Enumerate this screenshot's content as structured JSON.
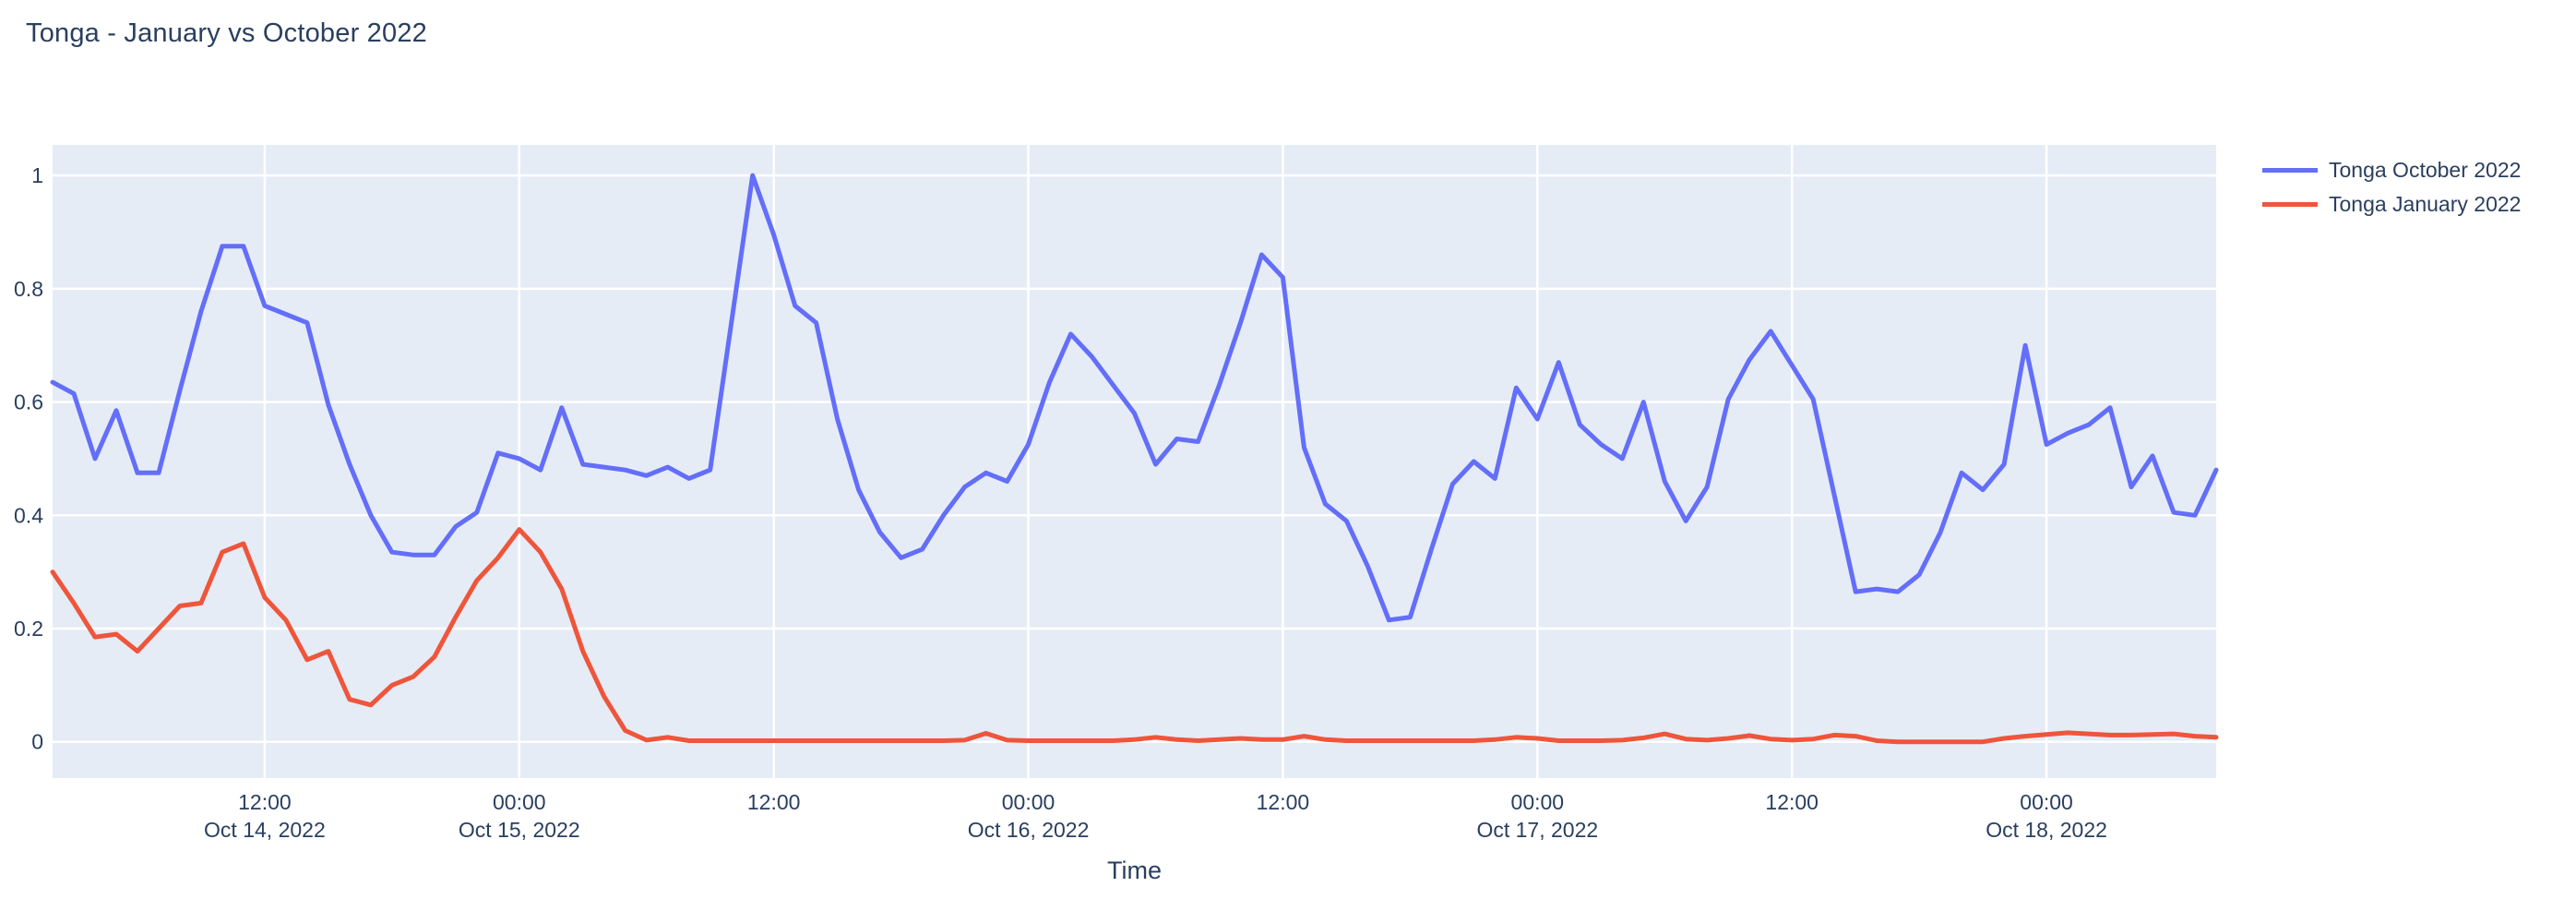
{
  "title": "Tonga - January vs October 2022",
  "legend": {
    "items": [
      {
        "label": "Tonga October 2022",
        "color": "#636EFA"
      },
      {
        "label": "Tonga January 2022",
        "color": "#EF553B"
      }
    ]
  },
  "axes": {
    "x_title": "Time",
    "x_ticks": [
      {
        "hour": 10,
        "time": "12:00",
        "date": "Oct 14, 2022"
      },
      {
        "hour": 22,
        "time": "00:00",
        "date": "Oct 15, 2022"
      },
      {
        "hour": 34,
        "time": "12:00",
        "date": ""
      },
      {
        "hour": 46,
        "time": "00:00",
        "date": "Oct 16, 2022"
      },
      {
        "hour": 58,
        "time": "12:00",
        "date": ""
      },
      {
        "hour": 70,
        "time": "00:00",
        "date": "Oct 17, 2022"
      },
      {
        "hour": 82,
        "time": "12:00",
        "date": ""
      },
      {
        "hour": 94,
        "time": "00:00",
        "date": "Oct 18, 2022"
      }
    ],
    "y_ticks": [
      {
        "value": 0,
        "label": "0"
      },
      {
        "value": 0.2,
        "label": "0.2"
      },
      {
        "value": 0.4,
        "label": "0.4"
      },
      {
        "value": 0.6,
        "label": "0.6"
      },
      {
        "value": 0.8,
        "label": "0.8"
      },
      {
        "value": 1,
        "label": "1"
      }
    ]
  },
  "colors": {
    "plot_background": "#E5ECF6",
    "gridline": "#FFFFFF",
    "text": "#2a3f5f",
    "series_october": "#636EFA",
    "series_january": "#EF553B"
  },
  "chart_data": {
    "type": "line",
    "title": "Tonga - January vs October 2022",
    "xlabel": "Time",
    "ylabel": "",
    "x_start": "2022-10-14 02:00",
    "x_end": "2022-10-18 08:00",
    "x_interval_hours": 1,
    "n_points": 103,
    "ylim": [
      -0.064,
      1.054
    ],
    "grid": true,
    "legend_position": "right-top",
    "series": [
      {
        "name": "Tonga October 2022",
        "color": "#636EFA",
        "values": [
          0.635,
          0.615,
          0.5,
          0.585,
          0.475,
          0.475,
          0.62,
          0.76,
          0.875,
          0.875,
          0.77,
          0.755,
          0.74,
          0.595,
          0.49,
          0.4,
          0.335,
          0.33,
          0.33,
          0.38,
          0.405,
          0.51,
          0.5,
          0.48,
          0.59,
          0.49,
          0.485,
          0.48,
          0.47,
          0.485,
          0.465,
          0.48,
          0.74,
          1.0,
          0.895,
          0.77,
          0.74,
          0.57,
          0.445,
          0.37,
          0.325,
          0.34,
          0.4,
          0.45,
          0.475,
          0.46,
          0.525,
          0.635,
          0.72,
          0.68,
          0.63,
          0.58,
          0.49,
          0.535,
          0.53,
          0.63,
          0.74,
          0.86,
          0.82,
          0.52,
          0.42,
          0.39,
          0.31,
          0.215,
          0.22,
          0.34,
          0.455,
          0.495,
          0.465,
          0.625,
          0.57,
          0.67,
          0.56,
          0.525,
          0.5,
          0.6,
          0.46,
          0.39,
          0.45,
          0.605,
          0.675,
          0.725,
          0.665,
          0.605,
          0.435,
          0.265,
          0.27,
          0.265,
          0.295,
          0.37,
          0.475,
          0.445,
          0.49,
          0.7,
          0.525,
          0.545,
          0.56,
          0.59,
          0.45,
          0.505,
          0.405,
          0.4,
          0.48
        ]
      },
      {
        "name": "Tonga January 2022",
        "color": "#EF553B",
        "values": [
          0.3,
          0.245,
          0.185,
          0.19,
          0.16,
          0.2,
          0.24,
          0.245,
          0.335,
          0.35,
          0.255,
          0.215,
          0.145,
          0.16,
          0.075,
          0.065,
          0.1,
          0.115,
          0.15,
          0.22,
          0.285,
          0.325,
          0.375,
          0.335,
          0.27,
          0.16,
          0.08,
          0.02,
          0.003,
          0.008,
          0.002,
          0.002,
          0.002,
          0.002,
          0.002,
          0.002,
          0.002,
          0.002,
          0.002,
          0.002,
          0.002,
          0.002,
          0.002,
          0.003,
          0.015,
          0.003,
          0.002,
          0.002,
          0.002,
          0.002,
          0.002,
          0.004,
          0.008,
          0.004,
          0.002,
          0.004,
          0.006,
          0.004,
          0.004,
          0.01,
          0.004,
          0.002,
          0.002,
          0.002,
          0.002,
          0.002,
          0.002,
          0.002,
          0.004,
          0.008,
          0.006,
          0.002,
          0.002,
          0.002,
          0.003,
          0.007,
          0.014,
          0.005,
          0.003,
          0.006,
          0.011,
          0.005,
          0.003,
          0.005,
          0.012,
          0.01,
          0.002,
          0.0,
          0.0,
          0.0,
          0.0,
          0.0,
          0.006,
          0.01,
          0.013,
          0.016,
          0.014,
          0.012,
          0.012,
          0.013,
          0.014,
          0.01,
          0.008
        ]
      }
    ]
  }
}
